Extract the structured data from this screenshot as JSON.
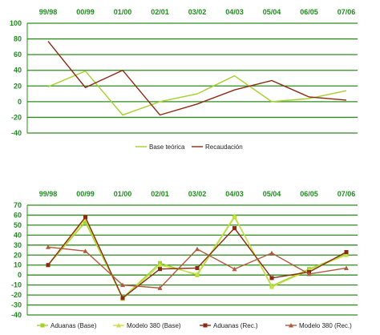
{
  "chart_data": [
    {
      "type": "line",
      "categories": [
        "99/98",
        "00/99",
        "01/00",
        "02/01",
        "03/02",
        "04/03",
        "05/04",
        "06/05",
        "07/06"
      ],
      "ylim": [
        -40,
        100
      ],
      "yticks": [
        100,
        80,
        60,
        40,
        20,
        0,
        -20,
        -40
      ],
      "grid": true,
      "legend": "bottom",
      "series": [
        {
          "name": "Base teórica",
          "color": "#a3d12c",
          "marker": "none",
          "values": [
            19,
            39,
            -17,
            0,
            10,
            33,
            0,
            4,
            14
          ]
        },
        {
          "name": "Recaudación",
          "color": "#8b2a12",
          "marker": "none",
          "values": [
            77,
            18,
            40,
            -17,
            -3,
            15,
            27,
            6,
            2
          ]
        }
      ]
    },
    {
      "type": "line",
      "categories": [
        "99/98",
        "00/99",
        "01/00",
        "02/01",
        "03/02",
        "04/03",
        "05/04",
        "06/05",
        "07/06"
      ],
      "ylim": [
        -40,
        70
      ],
      "yticks": [
        70,
        60,
        50,
        40,
        30,
        20,
        10,
        0,
        -10,
        -20,
        -30,
        -40
      ],
      "grid": true,
      "legend": "bottom",
      "series": [
        {
          "name": "Aduanas (Base)",
          "color": "#a3d12c",
          "marker": "square",
          "values": [
            10,
            53,
            -23,
            12,
            0,
            58,
            -11,
            6,
            21
          ]
        },
        {
          "name": "Modelo 380 (Base)",
          "color": "#c6e24a",
          "marker": "triangle",
          "values": [
            10,
            56,
            -24,
            10,
            1,
            59,
            -12,
            5,
            20
          ]
        },
        {
          "name": "Aduanas (Rec.)",
          "color": "#8b2a12",
          "marker": "square",
          "values": [
            10,
            58,
            -23,
            6,
            7,
            47,
            -3,
            3,
            23
          ]
        },
        {
          "name": "Modelo 380 (Rec.)",
          "color": "#b05a3c",
          "marker": "triangle",
          "values": [
            28,
            24,
            -10,
            -13,
            26,
            6,
            22,
            1,
            7
          ]
        }
      ]
    }
  ]
}
